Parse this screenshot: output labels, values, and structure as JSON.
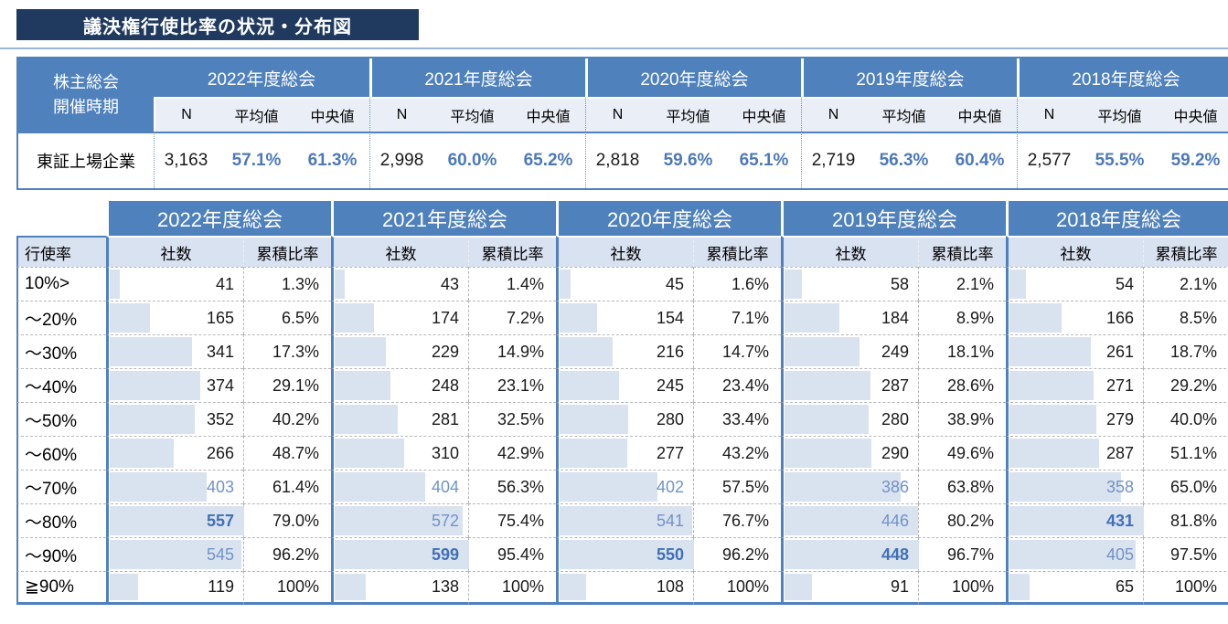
{
  "title": "議決権行使比率の状況・分布図",
  "colors": {
    "title_navy": "#1F3A5E",
    "header_blue": "#4F81BD",
    "subheader_light": "#EAEFF7",
    "subheader_lavender": "#D9E2F1",
    "data_bar": "#D9E2EF",
    "top3_blue_text": "#7193C7",
    "max_bold_blue_text": "#4070B7"
  },
  "chart_data": [
    {
      "type": "table",
      "name": "summary",
      "corner_header": [
        "株主総会",
        "開催時期"
      ],
      "row_label": "東証上場企業",
      "sub_headers": [
        "N",
        "平均値",
        "中央値"
      ],
      "years": [
        "2022年度総会",
        "2021年度総会",
        "2020年度総会",
        "2019年度総会",
        "2018年度総会"
      ],
      "rows": [
        {
          "year": "2022年度総会",
          "N": "3,163",
          "mean": "57.1%",
          "median": "61.3%"
        },
        {
          "year": "2021年度総会",
          "N": "2,998",
          "mean": "60.0%",
          "median": "65.2%"
        },
        {
          "year": "2020年度総会",
          "N": "2,818",
          "mean": "59.6%",
          "median": "65.1%"
        },
        {
          "year": "2019年度総会",
          "N": "2,719",
          "mean": "56.3%",
          "median": "60.4%"
        },
        {
          "year": "2018年度総会",
          "N": "2,577",
          "mean": "55.5%",
          "median": "59.2%"
        }
      ]
    },
    {
      "type": "table",
      "name": "distribution",
      "corner_header": "行使率",
      "sub_headers": [
        "社数",
        "累積比率"
      ],
      "years": [
        "2022年度総会",
        "2021年度総会",
        "2020年度総会",
        "2019年度総会",
        "2018年度総会"
      ],
      "row_labels": [
        "10%>",
        "～20%",
        "～30%",
        "～40%",
        "～50%",
        "～60%",
        "～70%",
        "～80%",
        "～90%",
        "≧90%"
      ],
      "series": [
        {
          "year": "2022年度総会",
          "counts": [
            41,
            165,
            341,
            374,
            352,
            266,
            403,
            557,
            545,
            119
          ],
          "cumulative": [
            "1.3%",
            "6.5%",
            "17.3%",
            "29.1%",
            "40.2%",
            "48.7%",
            "61.4%",
            "79.0%",
            "96.2%",
            "100%"
          ]
        },
        {
          "year": "2021年度総会",
          "counts": [
            43,
            174,
            229,
            248,
            281,
            310,
            404,
            572,
            599,
            138
          ],
          "cumulative": [
            "1.4%",
            "7.2%",
            "14.9%",
            "23.1%",
            "32.5%",
            "42.9%",
            "56.3%",
            "75.4%",
            "95.4%",
            "100%"
          ]
        },
        {
          "year": "2020年度総会",
          "counts": [
            45,
            154,
            216,
            245,
            280,
            277,
            402,
            541,
            550,
            108
          ],
          "cumulative": [
            "1.6%",
            "7.1%",
            "14.7%",
            "23.4%",
            "33.4%",
            "43.2%",
            "57.5%",
            "76.7%",
            "96.2%",
            "100%"
          ]
        },
        {
          "year": "2019年度総会",
          "counts": [
            58,
            184,
            249,
            287,
            280,
            290,
            386,
            446,
            448,
            91
          ],
          "cumulative": [
            "2.1%",
            "8.9%",
            "18.1%",
            "28.6%",
            "38.9%",
            "49.6%",
            "63.8%",
            "80.2%",
            "96.7%",
            "100%"
          ]
        },
        {
          "year": "2018年度総会",
          "counts": [
            54,
            166,
            261,
            271,
            279,
            287,
            358,
            431,
            405,
            65
          ],
          "cumulative": [
            "2.1%",
            "8.5%",
            "18.7%",
            "29.2%",
            "40.0%",
            "51.1%",
            "65.0%",
            "81.8%",
            "97.5%",
            "100%"
          ]
        }
      ],
      "style_note": "top 3 counts per year shown in blue, column max in bold blue; light blue data bar behind each count proportional to value"
    }
  ]
}
